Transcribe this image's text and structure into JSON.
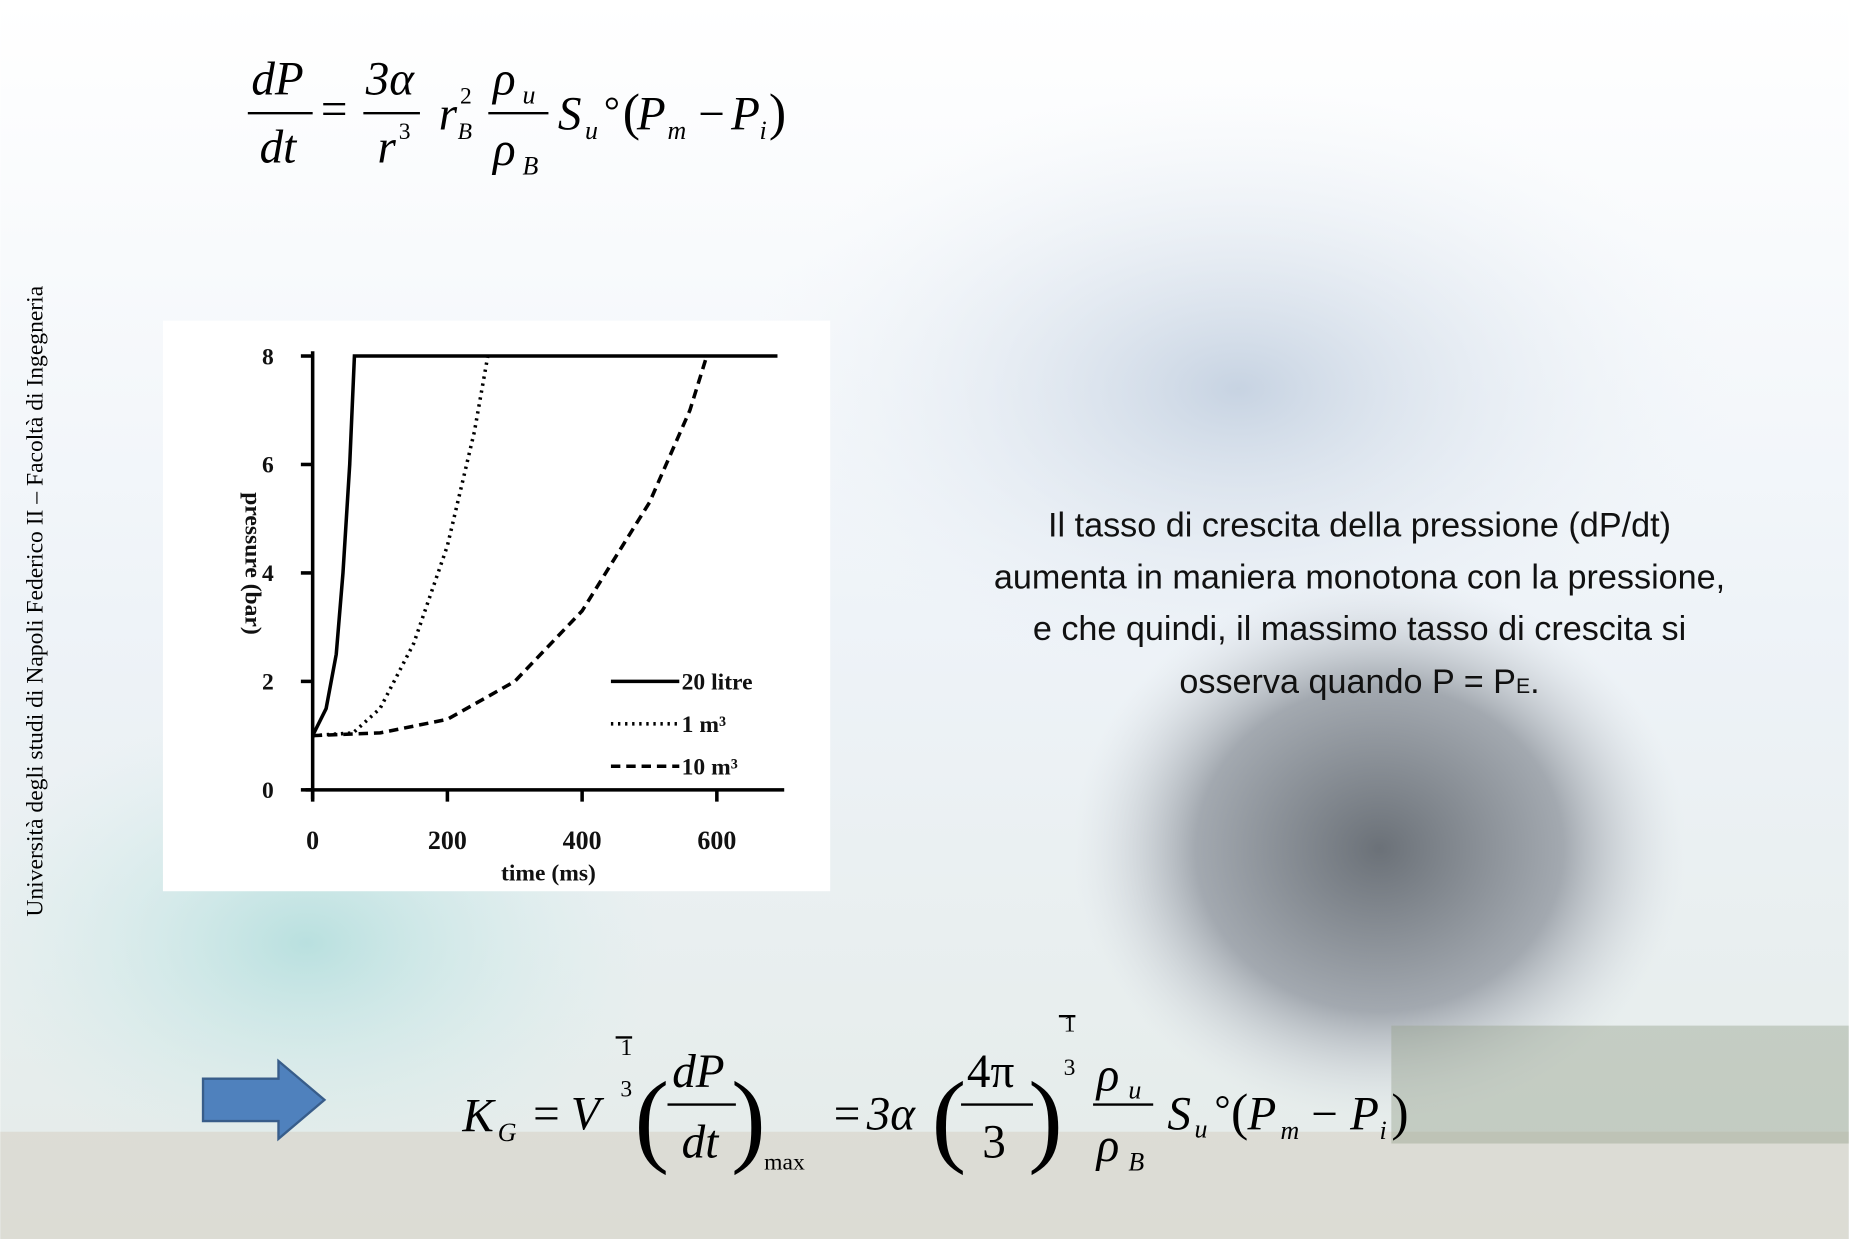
{
  "side_text": "Università degli studi di Napoli Federico II – Facoltà di Ingegneria",
  "formula_1": [
    "dP",
    "dt",
    "=",
    "3α",
    "r",
    "3",
    "r",
    "2",
    "B",
    "ρ",
    "u",
    "ρ",
    "B",
    "S",
    "u",
    "°",
    "(",
    "P",
    "m",
    "−",
    "P",
    "i",
    ")"
  ],
  "paragraph": {
    "lines": [
      "Il tasso di crescita della pressione (dP/dt)",
      "aumenta in maniera monotona con la pressione,",
      "e che quindi, il massimo tasso di crescita si"
    ],
    "last_line": [
      "osserva quando P = P",
      "E",
      "."
    ]
  },
  "formula_2": [
    "K",
    "G",
    "=",
    "V",
    "1",
    "3",
    "(",
    "dP",
    "dt",
    ")",
    "max",
    "=",
    "3α",
    "(",
    "4π",
    "3",
    ")",
    "1",
    "3",
    "ρ",
    "u",
    "ρ",
    "B",
    "S",
    "u",
    "°",
    "(",
    "P",
    "m",
    "−",
    "P",
    "i",
    ")"
  ],
  "chart_data": {
    "type": "line",
    "xlabel": "time (ms)",
    "ylabel": "pressure (bar)",
    "xlim": [
      0,
      700
    ],
    "ylim": [
      0,
      8
    ],
    "xticks": [
      0,
      200,
      400,
      600
    ],
    "yticks": [
      0,
      2,
      4,
      6,
      8
    ],
    "series": [
      {
        "name": "20 litre",
        "color": "#000000",
        "style": "solid",
        "x": [
          0,
          20,
          35,
          45,
          55,
          62,
          690
        ],
        "values": [
          1,
          1.5,
          2.5,
          4,
          6,
          8,
          8
        ]
      },
      {
        "name": "1 m³",
        "color": "#000000",
        "style": "dotted",
        "x": [
          0,
          60,
          100,
          150,
          200,
          240,
          260
        ],
        "values": [
          1,
          1.05,
          1.5,
          2.7,
          4.5,
          6.6,
          8
        ]
      },
      {
        "name": "10 m³",
        "color": "#000000",
        "style": "dashed",
        "x": [
          0,
          100,
          200,
          300,
          400,
          500,
          560,
          585
        ],
        "values": [
          1,
          1.05,
          1.3,
          2,
          3.3,
          5.3,
          7,
          8
        ]
      }
    ]
  }
}
